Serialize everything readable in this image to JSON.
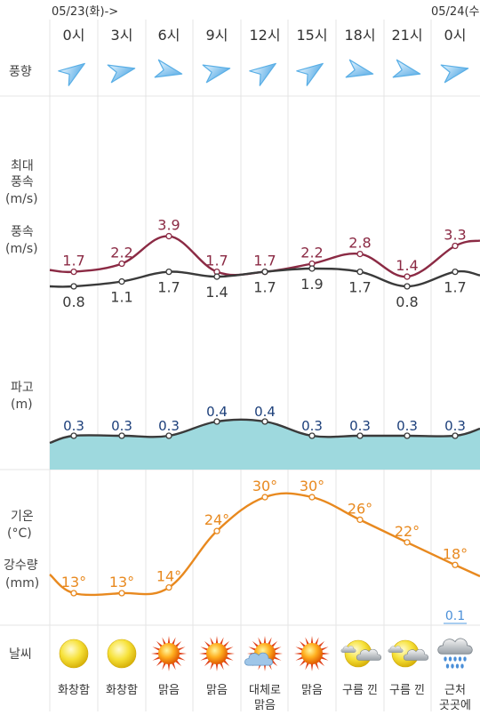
{
  "header": {
    "date_left": "05/23(화)->",
    "date_right": "05/24(수"
  },
  "hours": [
    "0시",
    "3시",
    "6시",
    "9시",
    "12시",
    "15시",
    "18시",
    "21시",
    "0시"
  ],
  "row_labels": {
    "wind_dir": "풍향",
    "max_wind_line1": "최대",
    "max_wind_line2": "풍속",
    "max_wind_unit": "(m/s)",
    "wind_line1": "풍속",
    "wind_unit": "(m/s)",
    "wave_line1": "파고",
    "wave_unit": "(m)",
    "temp_line1": "기온",
    "temp_unit": "(°C)",
    "precip_line1": "강수량",
    "precip_unit": "(mm)",
    "weather": "날씨"
  },
  "colors": {
    "max_wind": "#8b2a44",
    "wind": "#3a3a3a",
    "wave_line": "#3a3a3a",
    "wave_fill": "#9ed9de",
    "wave_label": "#1c3f7a",
    "temp": "#e8891f",
    "precip": "#4a8fd8",
    "grid": "#e4e4e4",
    "arrow": "#5aafe6"
  },
  "wind_dir_icons": [
    "arrow-up-right-icon",
    "arrow-right-icon",
    "arrow-right-down-icon",
    "arrow-right-icon",
    "arrow-up-right-icon",
    "arrow-up-right-icon",
    "arrow-right-down-icon",
    "arrow-right-down-icon",
    "arrow-right-icon"
  ],
  "chart_data": [
    {
      "type": "line",
      "categories": [
        "0시",
        "3시",
        "6시",
        "9시",
        "12시",
        "15시",
        "18시",
        "21시",
        "0시"
      ],
      "series": [
        {
          "values": [
            1.7,
            2.2,
            3.9,
            1.7,
            1.7,
            2.2,
            2.8,
            1.4,
            3.3
          ]
        },
        {
          "values": [
            0.8,
            1.1,
            1.7,
            1.4,
            1.7,
            1.9,
            1.7,
            0.8,
            1.7
          ]
        }
      ],
      "labels": [
        [
          "1.7",
          "2.2",
          "3.9",
          "1.7",
          "1.7",
          "2.2",
          "2.8",
          "1.4",
          "3.3"
        ],
        [
          "0.8",
          "1.1",
          "1.7",
          "1.4",
          "1.7",
          "1.9",
          "1.7",
          "0.8",
          "1.7"
        ]
      ]
    },
    {
      "type": "area",
      "categories": [
        "0시",
        "3시",
        "6시",
        "9시",
        "12시",
        "15시",
        "18시",
        "21시",
        "0시"
      ],
      "values": [
        0.3,
        0.3,
        0.3,
        0.4,
        0.4,
        0.3,
        0.3,
        0.3,
        0.3
      ],
      "labels": [
        "0.3",
        "0.3",
        "0.3",
        "0.4",
        "0.4",
        "0.3",
        "0.3",
        "0.3",
        "0.3"
      ]
    },
    {
      "type": "line",
      "categories": [
        "0시",
        "3시",
        "6시",
        "9시",
        "12시",
        "15시",
        "18시",
        "21시",
        "0시"
      ],
      "values": [
        13,
        13,
        14,
        24,
        30,
        30,
        26,
        22,
        18
      ],
      "labels": [
        "13°",
        "13°",
        "14°",
        "24°",
        "30°",
        "30°",
        "26°",
        "22°",
        "18°"
      ],
      "precip": [
        null,
        null,
        null,
        null,
        null,
        null,
        null,
        null,
        0.1
      ],
      "precip_labels": [
        "",
        "",
        "",
        "",
        "",
        "",
        "",
        "",
        "0.1"
      ]
    }
  ],
  "weather": {
    "icons": [
      "sun-hazy-icon",
      "sun-hazy-icon",
      "sun-clear-icon",
      "sun-clear-icon",
      "sun-partly-cloudy-icon",
      "sun-clear-icon",
      "sun-cloud-icon",
      "sun-cloud-icon",
      "cloud-rain-icon"
    ],
    "labels": [
      "화창함",
      "화창함",
      "맑음",
      "맑음",
      "대체로\n맑음",
      "맑음",
      "구름 낀",
      "구름 낀",
      "근처\n곳곳에"
    ]
  }
}
